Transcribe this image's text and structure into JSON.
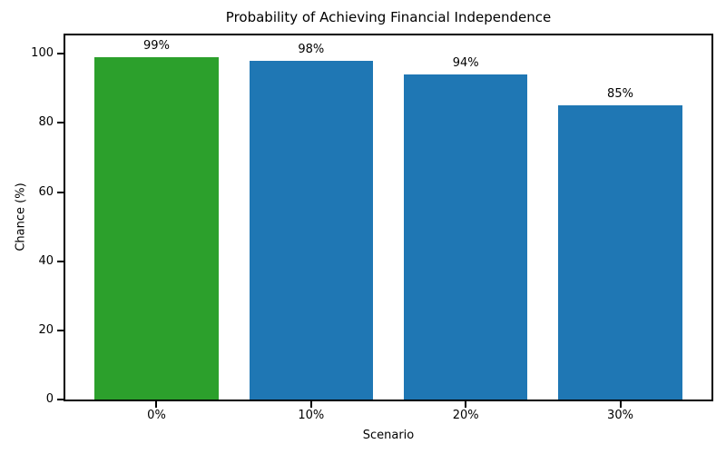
{
  "chart_data": {
    "type": "bar",
    "title": "Probability of Achieving Financial Independence",
    "xlabel": "Scenario",
    "ylabel": "Chance (%)",
    "categories": [
      "0%",
      "10%",
      "20%",
      "30%"
    ],
    "values": [
      99,
      98,
      94,
      85
    ],
    "bar_labels": [
      "99%",
      "98%",
      "94%",
      "85%"
    ],
    "bar_colors": [
      "#2ca02c",
      "#1f77b4",
      "#1f77b4",
      "#1f77b4"
    ],
    "ylim": [
      0,
      105.3
    ],
    "yticks": [
      0,
      20,
      40,
      60,
      80,
      100
    ],
    "grid": false,
    "legend": "none"
  },
  "colors": {
    "highlight_green": "#2ca02c",
    "series_blue": "#1f77b4",
    "axis": "#000000",
    "background": "#ffffff"
  }
}
